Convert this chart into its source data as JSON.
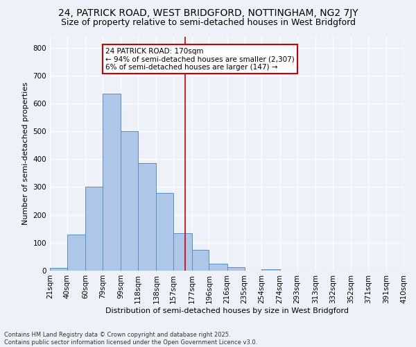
{
  "title1": "24, PATRICK ROAD, WEST BRIDGFORD, NOTTINGHAM, NG2 7JY",
  "title2": "Size of property relative to semi-detached houses in West Bridgford",
  "xlabel": "Distribution of semi-detached houses by size in West Bridgford",
  "ylabel": "Number of semi-detached properties",
  "bin_labels": [
    "21sqm",
    "40sqm",
    "60sqm",
    "79sqm",
    "99sqm",
    "118sqm",
    "138sqm",
    "157sqm",
    "177sqm",
    "196sqm",
    "216sqm",
    "235sqm",
    "254sqm",
    "274sqm",
    "293sqm",
    "313sqm",
    "332sqm",
    "352sqm",
    "371sqm",
    "391sqm",
    "410sqm"
  ],
  "bin_edges": [
    21,
    40,
    60,
    79,
    99,
    118,
    138,
    157,
    177,
    196,
    216,
    235,
    254,
    274,
    293,
    313,
    332,
    352,
    371,
    391,
    410
  ],
  "bar_heights": [
    10,
    130,
    300,
    635,
    500,
    385,
    280,
    135,
    75,
    25,
    13,
    0,
    5,
    0,
    0,
    0,
    0,
    0,
    0,
    0
  ],
  "bar_color": "#aec6e8",
  "bar_edgecolor": "#5a8fc2",
  "property_size": 170,
  "vline_color": "#cc0000",
  "annotation_line1": "24 PATRICK ROAD: 170sqm",
  "annotation_line2": "← 94% of semi-detached houses are smaller (2,307)",
  "annotation_line3": "6% of semi-detached houses are larger (147) →",
  "annotation_box_color": "#ffffff",
  "annotation_border_color": "#cc0000",
  "ylim": [
    0,
    840
  ],
  "yticks": [
    0,
    100,
    200,
    300,
    400,
    500,
    600,
    700,
    800
  ],
  "footnote": "Contains HM Land Registry data © Crown copyright and database right 2025.\nContains public sector information licensed under the Open Government Licence v3.0.",
  "bg_color": "#eef2f8",
  "grid_color": "#ffffff",
  "title1_fontsize": 10,
  "title2_fontsize": 9,
  "axis_fontsize": 8,
  "tick_fontsize": 7.5,
  "footnote_fontsize": 6
}
